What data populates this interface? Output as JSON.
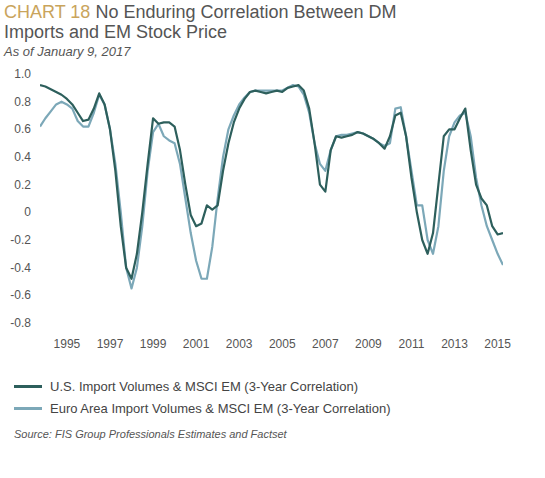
{
  "chart_data": {
    "type": "line",
    "chart_number": "CHART 18",
    "title": "No Enduring Correlation Between DM Imports and EM Stock Price",
    "subtitle": "As of January 9, 2017",
    "source": "Source:  FIS Group Professionals Estimates and Factset",
    "x": [
      1993.75,
      1994,
      1994.25,
      1994.5,
      1994.75,
      1995,
      1995.25,
      1995.5,
      1995.75,
      1996,
      1996.25,
      1996.5,
      1996.75,
      1997,
      1997.25,
      1997.5,
      1997.75,
      1998,
      1998.25,
      1998.5,
      1998.75,
      1999,
      1999.25,
      1999.5,
      1999.75,
      2000,
      2000.25,
      2000.5,
      2000.75,
      2001,
      2001.25,
      2001.5,
      2001.75,
      2002,
      2002.25,
      2002.5,
      2002.75,
      2003,
      2003.25,
      2003.5,
      2003.75,
      2004,
      2004.25,
      2004.5,
      2004.75,
      2005,
      2005.25,
      2005.5,
      2005.75,
      2006,
      2006.25,
      2006.5,
      2006.75,
      2007,
      2007.25,
      2007.5,
      2007.75,
      2008,
      2008.25,
      2008.5,
      2008.75,
      2009,
      2009.25,
      2009.5,
      2009.75,
      2010,
      2010.25,
      2010.5,
      2010.75,
      2011,
      2011.25,
      2011.5,
      2011.75,
      2012,
      2012.25,
      2012.5,
      2012.75,
      2013,
      2013.25,
      2013.5,
      2013.75,
      2014,
      2014.25,
      2014.5,
      2014.75,
      2015,
      2015.25
    ],
    "series": [
      {
        "name": "U.S. Import Volumes & MSCI EM (3-Year Correlation)",
        "color": "#2d5f5c",
        "values": [
          0.92,
          0.91,
          0.89,
          0.87,
          0.85,
          0.82,
          0.78,
          0.72,
          0.66,
          0.67,
          0.75,
          0.86,
          0.78,
          0.6,
          0.3,
          -0.1,
          -0.4,
          -0.48,
          -0.3,
          0.0,
          0.35,
          0.68,
          0.64,
          0.65,
          0.65,
          0.62,
          0.45,
          0.2,
          -0.02,
          -0.1,
          -0.08,
          0.05,
          0.02,
          0.05,
          0.3,
          0.5,
          0.65,
          0.75,
          0.82,
          0.87,
          0.88,
          0.87,
          0.86,
          0.87,
          0.88,
          0.87,
          0.9,
          0.91,
          0.92,
          0.88,
          0.75,
          0.5,
          0.2,
          0.15,
          0.45,
          0.55,
          0.54,
          0.55,
          0.56,
          0.58,
          0.57,
          0.55,
          0.53,
          0.5,
          0.46,
          0.55,
          0.7,
          0.72,
          0.55,
          0.25,
          0.0,
          -0.2,
          -0.3,
          -0.15,
          0.2,
          0.55,
          0.6,
          0.6,
          0.68,
          0.75,
          0.45,
          0.2,
          0.1,
          0.05,
          -0.1,
          -0.16,
          -0.15
        ]
      },
      {
        "name": "Euro Area Import Volumes & MSCI EM (3-Year Correlation)",
        "color": "#7ca8b8",
        "values": [
          0.62,
          0.68,
          0.73,
          0.78,
          0.8,
          0.78,
          0.75,
          0.66,
          0.62,
          0.62,
          0.72,
          0.85,
          0.78,
          0.6,
          0.35,
          0.0,
          -0.4,
          -0.55,
          -0.4,
          -0.1,
          0.3,
          0.58,
          0.64,
          0.55,
          0.52,
          0.5,
          0.35,
          0.1,
          -0.15,
          -0.35,
          -0.48,
          -0.48,
          -0.25,
          0.1,
          0.4,
          0.6,
          0.7,
          0.78,
          0.83,
          0.87,
          0.88,
          0.88,
          0.88,
          0.88,
          0.88,
          0.88,
          0.9,
          0.92,
          0.91,
          0.85,
          0.72,
          0.5,
          0.35,
          0.3,
          0.45,
          0.55,
          0.56,
          0.56,
          0.57,
          0.58,
          0.57,
          0.55,
          0.53,
          0.5,
          0.48,
          0.5,
          0.75,
          0.76,
          0.55,
          0.3,
          0.05,
          0.05,
          -0.2,
          -0.3,
          -0.1,
          0.3,
          0.55,
          0.65,
          0.7,
          0.72,
          0.55,
          0.25,
          0.05,
          -0.1,
          -0.2,
          -0.3,
          -0.38
        ]
      }
    ],
    "xlim": [
      1993.75,
      2015.25
    ],
    "xticks": [
      1995,
      1997,
      1999,
      2001,
      2003,
      2005,
      2007,
      2009,
      2011,
      2013,
      2015
    ],
    "ylim": [
      -0.8,
      1.0
    ],
    "yticks": [
      {
        "value": 1,
        "label": "1.0"
      },
      0.8,
      0.6,
      0.4,
      0.2,
      0,
      -0.2,
      -0.4,
      -0.6,
      -0.8
    ],
    "grid": false,
    "legend": "bottom"
  }
}
